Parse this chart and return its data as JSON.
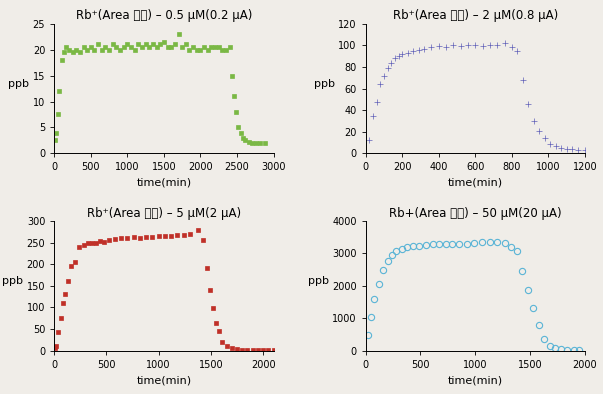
{
  "plots": [
    {
      "title": "Rb⁺(Area 기준) – 0.5 μM(0.2 μA)",
      "color": "#7ab844",
      "ylabel": "ppb",
      "xlabel": "time(min)",
      "xlim": [
        0,
        3000
      ],
      "ylim": [
        0,
        25
      ],
      "yticks": [
        0,
        5,
        10,
        15,
        20,
        25
      ],
      "xticks": [
        0,
        500,
        1000,
        1500,
        2000,
        2500,
        3000
      ],
      "marker": "s",
      "markersize": 3.0,
      "open": false,
      "x": [
        10,
        30,
        50,
        70,
        100,
        130,
        160,
        200,
        250,
        300,
        350,
        400,
        450,
        500,
        550,
        600,
        650,
        700,
        750,
        800,
        850,
        900,
        950,
        1000,
        1050,
        1100,
        1150,
        1200,
        1250,
        1300,
        1350,
        1400,
        1450,
        1500,
        1550,
        1600,
        1650,
        1700,
        1750,
        1800,
        1850,
        1900,
        1950,
        2000,
        2050,
        2100,
        2150,
        2200,
        2250,
        2300,
        2350,
        2400,
        2430,
        2460,
        2490,
        2520,
        2550,
        2580,
        2610,
        2660,
        2710,
        2760,
        2820,
        2880
      ],
      "y": [
        2.5,
        4.0,
        7.5,
        12.0,
        18.0,
        19.5,
        20.5,
        20.0,
        19.5,
        20.0,
        19.5,
        20.5,
        20.0,
        20.5,
        20.0,
        21.0,
        20.0,
        20.5,
        20.0,
        21.0,
        20.5,
        20.0,
        20.5,
        21.0,
        20.5,
        20.0,
        21.0,
        20.5,
        21.0,
        20.5,
        21.0,
        20.5,
        21.0,
        21.5,
        20.5,
        20.5,
        21.0,
        23.0,
        20.5,
        21.0,
        20.0,
        20.5,
        20.0,
        20.0,
        20.5,
        20.0,
        20.5,
        20.5,
        20.5,
        20.0,
        20.0,
        20.5,
        15.0,
        11.0,
        8.0,
        5.0,
        4.0,
        3.0,
        2.5,
        2.2,
        2.0,
        2.0,
        2.0,
        2.0
      ]
    },
    {
      "title": "Rb⁺(Area 기준) – 2 μM(0.8 μA)",
      "color": "#6060b8",
      "ylabel": "ppb",
      "xlabel": "time(min)",
      "xlim": [
        0,
        1200
      ],
      "ylim": [
        0,
        120
      ],
      "yticks": [
        0,
        20,
        40,
        60,
        80,
        100,
        120
      ],
      "xticks": [
        0,
        200,
        400,
        600,
        800,
        1000,
        1200
      ],
      "marker": "+",
      "markersize": 4.5,
      "open": false,
      "x": [
        20,
        40,
        60,
        80,
        100,
        120,
        140,
        160,
        180,
        200,
        230,
        260,
        290,
        320,
        360,
        400,
        440,
        480,
        520,
        560,
        600,
        640,
        680,
        720,
        760,
        800,
        830,
        860,
        890,
        920,
        950,
        980,
        1010,
        1040,
        1070,
        1100,
        1130,
        1160,
        1200
      ],
      "y": [
        12,
        35,
        48,
        64,
        72,
        79,
        84,
        88,
        90,
        92,
        93,
        95,
        96,
        97,
        98,
        99,
        98,
        100,
        99,
        100,
        100,
        99,
        100,
        100,
        102,
        98,
        95,
        68,
        46,
        30,
        21,
        14,
        9,
        7,
        5,
        4,
        4,
        3,
        3
      ]
    },
    {
      "title": "Rb⁺(Area 기준) – 5 μM(2 μA)",
      "color": "#c03028",
      "ylabel": "ppb",
      "xlabel": "time(min)",
      "xlim": [
        0,
        2100
      ],
      "ylim": [
        0,
        300
      ],
      "yticks": [
        0,
        50,
        100,
        150,
        200,
        250,
        300
      ],
      "xticks": [
        0,
        500,
        1000,
        1500,
        2000
      ],
      "marker": "s",
      "markersize": 3.0,
      "open": false,
      "x": [
        5,
        20,
        40,
        60,
        80,
        100,
        130,
        160,
        200,
        240,
        280,
        320,
        360,
        400,
        440,
        480,
        520,
        580,
        640,
        700,
        760,
        820,
        880,
        940,
        1000,
        1060,
        1120,
        1180,
        1240,
        1300,
        1380,
        1420,
        1460,
        1490,
        1520,
        1550,
        1580,
        1610,
        1650,
        1700,
        1750,
        1800,
        1850,
        1900,
        1950,
        2000,
        2050,
        2100
      ],
      "y": [
        5,
        10,
        42,
        76,
        110,
        130,
        160,
        196,
        204,
        240,
        245,
        248,
        250,
        250,
        253,
        252,
        255,
        257,
        260,
        260,
        262,
        260,
        262,
        263,
        264,
        265,
        266,
        267,
        268,
        270,
        280,
        255,
        190,
        140,
        98,
        63,
        45,
        20,
        10,
        5,
        3,
        2,
        1,
        1,
        1,
        1,
        1,
        1
      ]
    },
    {
      "title": "Rb+(Area 기준) – 50 μM(20 μA)",
      "color": "#5ab4d6",
      "ylabel": "ppb",
      "xlabel": "time(min)",
      "xlim": [
        0,
        2000
      ],
      "ylim": [
        0,
        4000
      ],
      "yticks": [
        0,
        1000,
        2000,
        3000,
        4000
      ],
      "xticks": [
        0,
        500,
        1000,
        1500,
        2000
      ],
      "marker": "o",
      "markersize": 4.5,
      "open": true,
      "x": [
        20,
        50,
        80,
        120,
        160,
        200,
        240,
        280,
        330,
        380,
        430,
        490,
        550,
        610,
        670,
        730,
        790,
        850,
        920,
        990,
        1060,
        1130,
        1200,
        1270,
        1330,
        1380,
        1430,
        1480,
        1530,
        1580,
        1630,
        1680,
        1730,
        1780,
        1840,
        1900,
        1950
      ],
      "y": [
        480,
        1040,
        1580,
        2060,
        2480,
        2750,
        2960,
        3080,
        3140,
        3200,
        3220,
        3240,
        3260,
        3280,
        3280,
        3300,
        3280,
        3300,
        3300,
        3320,
        3340,
        3340,
        3360,
        3320,
        3200,
        3060,
        2460,
        1880,
        1300,
        800,
        350,
        150,
        70,
        40,
        20,
        12,
        8
      ]
    }
  ],
  "bg_color": "#f0ede8",
  "title_fontsize": 8.5,
  "label_fontsize": 8,
  "tick_fontsize": 7
}
